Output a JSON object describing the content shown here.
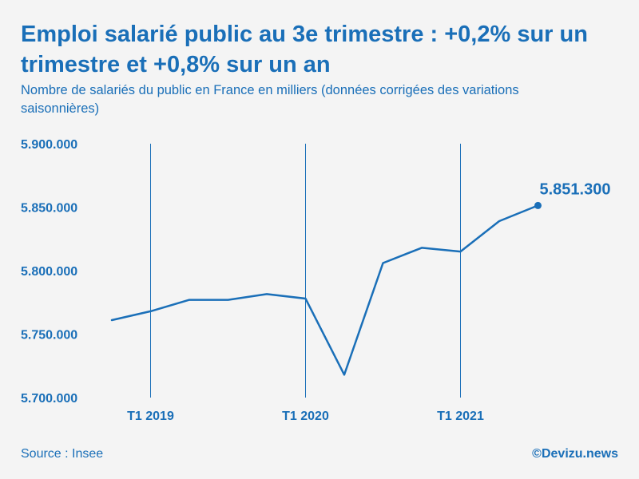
{
  "chart_data": {
    "type": "line",
    "title": "Emploi salarié public au 3e trimestre : +0,2% sur un trimestre et +0,8% sur un an",
    "subtitle": "Nombre de salariés du public en France en milliers (données corrigées des variations saisonnières)",
    "xlabel": "",
    "ylabel": "",
    "ylim": [
      5700000,
      5900000
    ],
    "y_ticks": [
      5900000,
      5850000,
      5800000,
      5750000,
      5700000
    ],
    "y_tick_labels": [
      "5.900.000",
      "5.850.000",
      "5.800.000",
      "5.750.000",
      "5.700.000"
    ],
    "x_tick_labels": [
      "T1 2019",
      "T1 2020",
      "T1 2021"
    ],
    "x_tick_positions": [
      1,
      5,
      9
    ],
    "series": [
      {
        "values": [
          5761000,
          5768000,
          5777000,
          5777000,
          5781500,
          5778000,
          5718000,
          5806000,
          5818000,
          5815000,
          5839000,
          5851300
        ]
      }
    ],
    "last_value_label": "5.851.300",
    "grid": "vertical lines at year starts",
    "legend": "none"
  },
  "footer": {
    "source": "Source : Insee",
    "credit": "©Devizu.news"
  },
  "colors": {
    "accent": "#1a6fb8",
    "background": "#f4f4f4"
  }
}
